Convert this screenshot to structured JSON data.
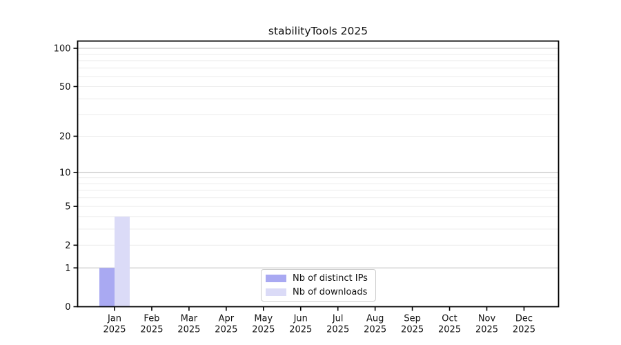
{
  "chart_data": {
    "type": "bar",
    "title": "stabilityTools 2025",
    "categories": [
      "Jan 2025",
      "Feb 2025",
      "Mar 2025",
      "Apr 2025",
      "May 2025",
      "Jun 2025",
      "Jul 2025",
      "Aug 2025",
      "Sep 2025",
      "Oct 2025",
      "Nov 2025",
      "Dec 2025"
    ],
    "series": [
      {
        "name": "Nb of distinct IPs",
        "color": "#a9a9f2",
        "values": [
          1,
          0,
          0,
          0,
          0,
          0,
          0,
          0,
          0,
          0,
          0,
          0
        ]
      },
      {
        "name": "Nb of downloads",
        "color": "#dbdbf7",
        "values": [
          4,
          0,
          0,
          0,
          0,
          0,
          0,
          0,
          0,
          0,
          0,
          0
        ]
      }
    ],
    "xlabel": "",
    "ylabel": "",
    "y_scale": "log10(1+x)",
    "ylim": [
      0,
      113
    ],
    "y_ticks": [
      0,
      1,
      2,
      5,
      10,
      20,
      50,
      100
    ],
    "y_major_gridlines": [
      1,
      10,
      100
    ],
    "y_minor_gridlines": [
      2,
      3,
      4,
      5,
      6,
      7,
      8,
      9,
      20,
      30,
      40,
      50,
      60,
      70,
      80,
      90
    ],
    "grid": "horizontal",
    "legend_position": "lower center",
    "colors": {
      "axis": "#000000",
      "major_grid": "#bdbdbd",
      "minor_grid": "#ececec",
      "text": "#111111"
    }
  }
}
